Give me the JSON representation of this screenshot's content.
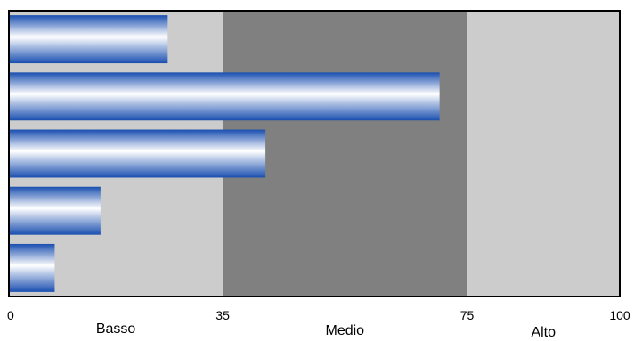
{
  "chart_data": {
    "type": "bar",
    "orientation": "horizontal",
    "title": "",
    "xlabel": "",
    "ylabel": "",
    "xlim": [
      0,
      100
    ],
    "ticks": [
      0,
      35,
      75,
      100
    ],
    "grid": false,
    "bands": [
      {
        "label": "Basso",
        "from": 0,
        "to": 35,
        "color": "#cccccc"
      },
      {
        "label": "Medio",
        "from": 35,
        "to": 75,
        "color": "#808080"
      },
      {
        "label": "Alto",
        "from": 75,
        "to": 100,
        "color": "#cccccc"
      }
    ],
    "values": [
      26,
      70.5,
      42,
      15,
      7.5
    ],
    "bar_color": "#1a4fb0",
    "bar_highlight": "#ffffff"
  }
}
